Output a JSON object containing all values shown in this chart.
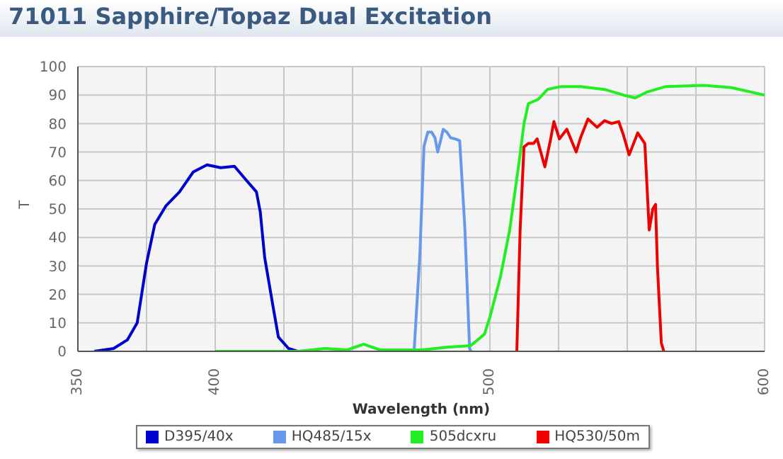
{
  "chart_data": {
    "type": "line",
    "title": "71011 Sapphire/Topaz Dual Excitation",
    "xlabel": "Wavelength (nm)",
    "ylabel": "T",
    "xlim": [
      350,
      600
    ],
    "xticks": [
      350,
      {
        "value": 375,
        "label": null
      },
      400,
      {
        "value": 425,
        "label": null
      },
      {
        "value": 450,
        "label": null
      },
      {
        "value": 475,
        "label": null
      },
      500,
      {
        "value": 525,
        "label": null
      },
      {
        "value": 550,
        "label": null
      },
      {
        "value": 575,
        "label": null
      },
      600
    ],
    "ylim": [
      0,
      100
    ],
    "yticks": [
      0,
      10,
      20,
      30,
      40,
      50,
      60,
      70,
      80,
      90,
      100
    ],
    "grid": true,
    "legend": "bottom",
    "marker": "none",
    "line_style": "solid",
    "series": [
      {
        "name": "D395/40x",
        "color": "#0000cc",
        "x": [
          356,
          363,
          368,
          371.6,
          375,
          378,
          382,
          387,
          392,
          397,
          402,
          407,
          410.5,
          415,
          416.4,
          418,
          421,
          423,
          426.7,
          430
        ],
        "values": [
          0,
          1,
          4,
          10,
          31,
          44.6,
          51,
          56,
          63,
          65.5,
          64.5,
          65,
          61,
          56,
          49,
          33,
          16,
          5,
          1,
          0
        ]
      },
      {
        "name": "HQ485/15x",
        "color": "#6699ee",
        "x": [
          472.4,
          474.5,
          476,
          477.4,
          478.8,
          480,
          481,
          482.2,
          483,
          484.3,
          485.7,
          487.4,
          489,
          490.9,
          492.6,
          493.1
        ],
        "values": [
          0,
          34,
          72,
          77,
          77,
          75,
          70,
          74.6,
          78,
          77,
          75,
          74.6,
          74,
          43,
          1,
          0
        ]
      },
      {
        "name": "505dcxru",
        "color": "#22ee22",
        "x": [
          400,
          430,
          440,
          448,
          454,
          460,
          475,
          485,
          493,
          498,
          500,
          503.8,
          507.2,
          510.7,
          512.4,
          514,
          517.6,
          521,
          526,
          533,
          541.7,
          548.6,
          552.9,
          557,
          564,
          578,
          588,
          600
        ],
        "values": [
          0,
          0,
          1,
          0.5,
          2.5,
          0.5,
          0.5,
          1.5,
          2,
          6,
          12,
          26,
          42.6,
          67,
          80,
          87,
          88.5,
          92,
          93,
          93,
          92,
          90,
          89,
          91,
          93,
          93.4,
          92.6,
          90
        ]
      },
      {
        "name": "HQ530/50m",
        "color": "#ee0000",
        "x": [
          509.8,
          511,
          512.4,
          514,
          515.9,
          517.2,
          520,
          522,
          523.3,
          525.3,
          528,
          531.4,
          533,
          535.7,
          539,
          541.7,
          544.3,
          546.9,
          548.6,
          550.7,
          553.8,
          556.4,
          558,
          559.3,
          560.3,
          561,
          562.4,
          563.3
        ],
        "values": [
          0,
          42.6,
          71.8,
          73,
          73,
          74.6,
          64.8,
          74,
          80.7,
          74.6,
          78,
          70,
          75,
          81.6,
          78.7,
          81,
          80,
          80.7,
          76,
          69,
          76.7,
          73,
          42.6,
          50,
          51.6,
          29.5,
          3,
          0
        ]
      }
    ]
  }
}
